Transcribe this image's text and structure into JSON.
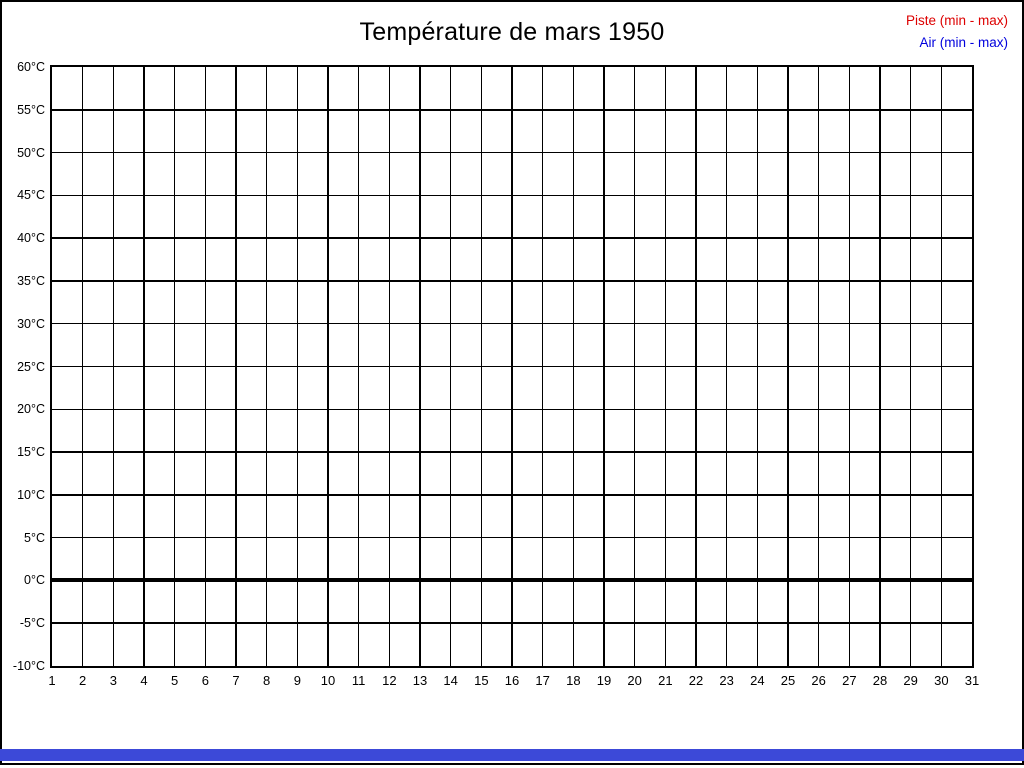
{
  "header": {
    "title": "Température de mars 1950"
  },
  "legend": {
    "items": [
      {
        "label": "Piste (min - max)",
        "color": "#dd0000"
      },
      {
        "label": "Air (min - max)",
        "color": "#0000dd"
      }
    ]
  },
  "chart_data": {
    "type": "line",
    "title": "Température de mars 1950",
    "xlabel": "",
    "ylabel": "",
    "x": [
      "1",
      "2",
      "3",
      "4",
      "5",
      "6",
      "7",
      "8",
      "9",
      "10",
      "11",
      "12",
      "13",
      "14",
      "15",
      "16",
      "17",
      "18",
      "19",
      "20",
      "21",
      "22",
      "23",
      "24",
      "25",
      "26",
      "27",
      "28",
      "29",
      "30",
      "31"
    ],
    "ylim": [
      -10,
      60
    ],
    "ytick_values": [
      60,
      55,
      50,
      45,
      40,
      35,
      30,
      25,
      20,
      15,
      10,
      5,
      0,
      -5,
      -10
    ],
    "ytick_labels": [
      "60°C",
      "55°C",
      "50°C",
      "45°C",
      "40°C",
      "35°C",
      "30°C",
      "25°C",
      "20°C",
      "15°C",
      "10°C",
      "5°C",
      "0°C",
      "-5°C",
      "-10°C"
    ],
    "grid": true,
    "grid_color": "#000000",
    "zero_line": {
      "value": 0,
      "thick": true,
      "color": "#000000"
    },
    "legend_position": "top-right",
    "series": [
      {
        "name": "Piste (min - max)",
        "color": "#dd0000",
        "values": []
      },
      {
        "name": "Air (min - max)",
        "color": "#0000dd",
        "values": []
      }
    ]
  },
  "bottom_bar": {
    "color": "#3c49d8"
  }
}
